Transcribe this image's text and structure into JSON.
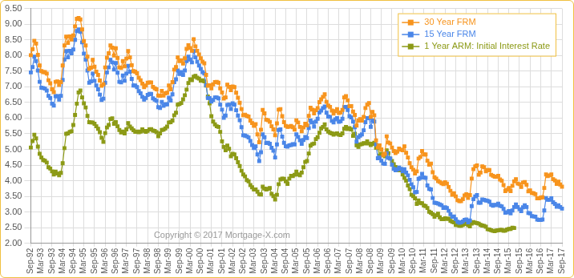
{
  "chart_data": {
    "type": "line",
    "annotation": "Copyright © 2017 Mortgage-X.com",
    "legend": "top-right",
    "grid": true,
    "categories": [
      "Sep-92",
      null,
      null,
      null,
      null,
      null,
      "Mar-93",
      null,
      null,
      null,
      null,
      null,
      "Sep-93",
      null,
      null,
      null,
      null,
      null,
      "Mar-94",
      null,
      null,
      null,
      null,
      null,
      "Sep-94",
      null,
      null,
      null,
      null,
      null,
      "Mar-95",
      null,
      null,
      null,
      null,
      null,
      "Sep-95",
      null,
      null,
      null,
      null,
      null,
      "Mar-96",
      null,
      null,
      null,
      null,
      null,
      "Sep-96",
      null,
      null,
      null,
      null,
      null,
      "Mar-97",
      null,
      null,
      null,
      null,
      null,
      "Sep-97",
      null,
      null,
      null,
      null,
      null,
      "Mar-98",
      null,
      null,
      null,
      null,
      null,
      "Sep-98",
      null,
      null,
      null,
      null,
      null,
      "Mar-99",
      null,
      null,
      null,
      null,
      null,
      "Sep-99",
      null,
      null,
      null,
      null,
      null,
      "Mar-00",
      null,
      null,
      null,
      null,
      null,
      "Sep-00",
      null,
      null,
      null,
      null,
      null,
      "Mar-01",
      null,
      null,
      null,
      null,
      null,
      "Sep-01",
      null,
      null,
      null,
      null,
      null,
      "Mar-02",
      null,
      null,
      null,
      null,
      null,
      "Sep-02",
      null,
      null,
      null,
      null,
      null,
      "Mar-03",
      null,
      null,
      null,
      null,
      null,
      "Sep-03",
      null,
      null,
      null,
      null,
      null,
      "Mar-04",
      null,
      null,
      null,
      null,
      null,
      "Sep-04",
      null,
      null,
      null,
      null,
      null,
      "Mar-05",
      null,
      null,
      null,
      null,
      null,
      "Sep-05",
      null,
      null,
      null,
      null,
      null,
      "Mar-06",
      null,
      null,
      null,
      null,
      null,
      "Sep-06",
      null,
      null,
      null,
      null,
      null,
      "Mar-07",
      null,
      null,
      null,
      null,
      null,
      "Sep-07",
      null,
      null,
      null,
      null,
      null,
      "Mar-08",
      null,
      null,
      null,
      null,
      null,
      "Sep-08",
      null,
      null,
      null,
      null,
      null,
      "Mar-09",
      null,
      null,
      null,
      null,
      null,
      "Sep-09",
      null,
      null,
      null,
      null,
      null,
      "Mar-10",
      null,
      null,
      null,
      null,
      null,
      "Sep-10",
      null,
      null,
      null,
      null,
      null,
      "Mar-11",
      null,
      null,
      null,
      null,
      null,
      "Sep-11",
      null,
      null,
      null,
      null,
      null,
      "Mar-12",
      null,
      null,
      null,
      null,
      null,
      "Sep-12",
      null,
      null,
      null,
      null,
      null,
      "Mar-13",
      null,
      null,
      null,
      null,
      null,
      "Sep-13",
      null,
      null,
      null,
      null,
      null,
      "Mar-14",
      null,
      null,
      null,
      null,
      null,
      "Sep-14",
      null,
      null,
      null,
      null,
      null,
      "Mar-15",
      null,
      null,
      null,
      null,
      null,
      "Sep-15",
      null,
      null,
      null,
      null,
      null,
      "Mar-16",
      null,
      null,
      null,
      null,
      null,
      "Sep-16",
      null,
      null,
      null,
      null,
      null,
      "Mar-17",
      null,
      null,
      null,
      null,
      null,
      "Sep-17"
    ],
    "ylim": [
      2,
      9.5
    ],
    "yticks": [
      {
        "value": 2,
        "label": "2.00"
      },
      {
        "value": 2.5,
        "label": "2.50"
      },
      {
        "value": 3,
        "label": "3.00"
      },
      {
        "value": 3.5,
        "label": "3.50"
      },
      {
        "value": 4,
        "label": "4.00"
      },
      {
        "value": 4.5,
        "label": "4.50"
      },
      {
        "value": 5,
        "label": "5.00"
      },
      {
        "value": 5.5,
        "label": "5.50"
      },
      {
        "value": 6,
        "label": "6.00"
      },
      {
        "value": 6.5,
        "label": "6.50"
      },
      {
        "value": 7,
        "label": "7.00"
      },
      {
        "value": 7.5,
        "label": "7.50"
      },
      {
        "value": 8,
        "label": "8.00"
      },
      {
        "value": 8.5,
        "label": "8.50"
      },
      {
        "value": 9,
        "label": "9.00"
      },
      {
        "value": 9.5,
        "label": "9.50"
      }
    ],
    "series": [
      {
        "name": "30 Year FRM",
        "color": "#f7941d",
        "marker": "square",
        "line_style": "solid",
        "values": [
          8.01,
          8.2,
          8.47,
          8.38,
          8.02,
          7.68,
          7.5,
          7.47,
          7.47,
          7.42,
          7.21,
          7.11,
          6.92,
          6.83,
          7.16,
          7.17,
          7.06,
          7.15,
          7.68,
          8.32,
          8.6,
          8.4,
          8.61,
          8.51,
          8.64,
          8.93,
          9.17,
          9.2,
          9.15,
          8.83,
          8.46,
          8.32,
          7.96,
          7.57,
          7.61,
          7.86,
          7.64,
          7.48,
          7.38,
          7.2,
          7.03,
          7.08,
          7.62,
          7.93,
          8.07,
          8.32,
          8.25,
          8.0,
          8.23,
          7.92,
          7.62,
          7.6,
          7.82,
          7.65,
          7.9,
          8.14,
          7.94,
          7.69,
          7.5,
          7.48,
          7.43,
          7.29,
          7.21,
          7.1,
          6.99,
          7.04,
          7.13,
          7.14,
          7.14,
          7.0,
          6.95,
          6.92,
          6.72,
          6.71,
          6.87,
          6.72,
          6.79,
          6.81,
          7.04,
          6.92,
          7.15,
          7.55,
          7.63,
          7.94,
          7.82,
          7.85,
          7.74,
          7.91,
          8.21,
          8.33,
          8.24,
          8.15,
          8.52,
          8.29,
          8.15,
          8.03,
          7.91,
          7.8,
          7.75,
          7.38,
          7.03,
          7.05,
          6.95,
          7.08,
          7.15,
          7.16,
          7.13,
          6.95,
          6.82,
          6.62,
          6.66,
          7.07,
          7.0,
          6.89,
          7.01,
          6.99,
          6.81,
          6.65,
          6.49,
          6.29,
          6.09,
          6.11,
          6.07,
          6.05,
          5.92,
          5.84,
          5.75,
          5.81,
          5.48,
          5.23,
          5.63,
          6.26,
          6.15,
          5.95,
          5.93,
          5.88,
          5.74,
          5.64,
          5.45,
          5.83,
          6.27,
          6.29,
          6.06,
          5.87,
          5.75,
          5.72,
          5.73,
          5.75,
          5.71,
          5.63,
          5.93,
          5.86,
          5.72,
          5.58,
          5.7,
          5.82,
          5.77,
          6.07,
          6.33,
          6.27,
          6.15,
          6.25,
          6.32,
          6.51,
          6.6,
          6.68,
          6.76,
          6.52,
          6.4,
          6.36,
          6.24,
          6.14,
          6.22,
          6.29,
          6.16,
          6.18,
          6.26,
          6.66,
          6.7,
          6.57,
          6.38,
          6.38,
          6.21,
          6.1,
          5.76,
          5.92,
          5.97,
          5.92,
          6.04,
          6.32,
          6.43,
          6.48,
          6.04,
          6.2,
          6.09,
          5.29,
          5.06,
          5.13,
          5.0,
          4.81,
          4.86,
          5.42,
          5.22,
          5.19,
          5.06,
          4.95,
          4.88,
          4.93,
          5.03,
          4.99,
          4.97,
          5.1,
          4.89,
          4.74,
          4.56,
          4.43,
          4.35,
          4.23,
          4.3,
          4.71,
          4.76,
          4.95,
          4.84,
          4.84,
          4.64,
          4.51,
          4.55,
          4.27,
          4.11,
          4.07,
          3.99,
          3.96,
          3.92,
          3.89,
          3.95,
          3.91,
          3.8,
          3.68,
          3.55,
          3.6,
          3.5,
          3.38,
          3.35,
          3.35,
          3.41,
          3.53,
          3.57,
          3.45,
          3.54,
          4.07,
          4.37,
          4.46,
          4.49,
          4.19,
          4.26,
          4.46,
          4.43,
          4.3,
          4.34,
          4.34,
          4.19,
          4.16,
          4.13,
          4.12,
          4.16,
          4.04,
          4.0,
          3.86,
          3.67,
          3.71,
          3.77,
          3.67,
          3.84,
          3.98,
          4.05,
          3.91,
          3.89,
          3.8,
          3.94,
          3.96,
          3.87,
          3.66,
          3.69,
          3.61,
          3.6,
          3.57,
          3.44,
          3.44,
          3.46,
          3.47,
          3.77,
          4.2,
          4.15,
          4.17,
          4.2,
          4.05,
          4.01,
          3.9,
          3.97,
          3.88,
          3.81
        ]
      },
      {
        "name": "15 Year FRM",
        "color": "#4a86e8",
        "marker": "square",
        "line_style": "solid",
        "values": [
          7.46,
          7.63,
          7.96,
          7.82,
          7.52,
          7.16,
          6.97,
          6.96,
          6.94,
          6.88,
          6.71,
          6.64,
          6.46,
          6.4,
          6.7,
          6.7,
          6.59,
          6.71,
          7.22,
          7.87,
          8.14,
          7.94,
          8.15,
          8.07,
          8.19,
          8.5,
          8.78,
          8.83,
          8.75,
          8.42,
          8.06,
          7.87,
          7.52,
          7.13,
          7.17,
          7.42,
          7.19,
          7.04,
          6.92,
          6.75,
          6.58,
          6.62,
          7.13,
          7.46,
          7.62,
          7.86,
          7.78,
          7.55,
          7.76,
          7.45,
          7.16,
          7.14,
          7.36,
          7.19,
          7.42,
          7.67,
          7.48,
          7.25,
          7.04,
          7.04,
          6.99,
          6.86,
          6.79,
          6.68,
          6.59,
          6.64,
          6.74,
          6.77,
          6.77,
          6.63,
          6.59,
          6.55,
          6.35,
          6.32,
          6.52,
          6.39,
          6.44,
          6.44,
          6.65,
          6.56,
          6.76,
          7.15,
          7.24,
          7.52,
          7.41,
          7.47,
          7.38,
          7.52,
          7.82,
          7.96,
          7.87,
          7.78,
          8.14,
          7.94,
          7.8,
          7.68,
          7.57,
          7.47,
          7.42,
          7.05,
          6.64,
          6.64,
          6.53,
          6.58,
          6.66,
          6.66,
          6.63,
          6.43,
          6.27,
          6.01,
          6.08,
          6.42,
          6.43,
          6.29,
          6.47,
          6.43,
          6.25,
          6.08,
          5.93,
          5.71,
          5.45,
          5.44,
          5.42,
          5.38,
          5.27,
          5.14,
          5.04,
          5.1,
          4.84,
          4.63,
          4.91,
          5.48,
          5.39,
          5.2,
          5.21,
          5.18,
          5.05,
          4.96,
          4.74,
          5.16,
          5.62,
          5.64,
          5.41,
          5.21,
          5.1,
          5.09,
          5.13,
          5.14,
          5.17,
          5.16,
          5.48,
          5.4,
          5.29,
          5.18,
          5.3,
          5.4,
          5.36,
          5.68,
          5.92,
          5.86,
          5.73,
          5.89,
          5.98,
          6.18,
          6.24,
          6.32,
          6.37,
          6.17,
          6.05,
          6.04,
          5.91,
          5.86,
          5.96,
          6.0,
          5.88,
          5.9,
          5.98,
          6.35,
          6.36,
          6.26,
          6.06,
          6.02,
          5.89,
          5.71,
          5.25,
          5.39,
          5.44,
          5.48,
          5.61,
          5.87,
          6.0,
          6.0,
          5.72,
          5.92,
          5.89,
          5.15,
          4.72,
          4.74,
          4.64,
          4.55,
          4.54,
          4.88,
          4.73,
          4.71,
          4.51,
          4.38,
          4.33,
          4.36,
          4.42,
          4.38,
          4.3,
          4.37,
          4.26,
          4.17,
          4.03,
          3.89,
          3.79,
          3.63,
          3.64,
          4.06,
          4.09,
          4.22,
          4.1,
          4.09,
          3.85,
          3.74,
          3.72,
          3.45,
          3.3,
          3.29,
          3.27,
          3.24,
          3.22,
          3.13,
          3.15,
          3.13,
          3.04,
          2.93,
          2.85,
          2.86,
          2.77,
          2.69,
          2.66,
          2.67,
          2.7,
          2.75,
          2.76,
          2.67,
          2.73,
          3.19,
          3.41,
          3.5,
          3.54,
          3.3,
          3.3,
          3.4,
          3.39,
          3.37,
          3.36,
          3.33,
          3.23,
          3.2,
          3.23,
          3.22,
          3.27,
          3.2,
          3.18,
          3.1,
          2.98,
          2.99,
          3.03,
          2.96,
          3.05,
          3.16,
          3.24,
          3.16,
          3.09,
          3.03,
          3.15,
          3.22,
          3.16,
          2.97,
          2.96,
          2.87,
          2.86,
          2.85,
          2.76,
          2.75,
          2.75,
          2.76,
          3.05,
          3.45,
          3.39,
          3.39,
          3.44,
          3.31,
          3.26,
          3.17,
          3.22,
          3.16,
          3.11
        ]
      },
      {
        "name": "1 Year ARM: Initial Interest Rate",
        "color": "#8c9a16",
        "marker": "square",
        "line_style": "solid",
        "values": [
          5.06,
          5.27,
          5.47,
          5.35,
          5.09,
          4.86,
          4.74,
          4.66,
          4.64,
          4.58,
          4.43,
          4.39,
          4.3,
          4.2,
          4.29,
          4.23,
          4.17,
          4.25,
          4.56,
          5.04,
          5.5,
          5.51,
          5.56,
          5.58,
          5.78,
          6.1,
          6.46,
          6.82,
          6.88,
          6.66,
          6.47,
          6.34,
          6.07,
          5.87,
          5.86,
          5.86,
          5.82,
          5.74,
          5.66,
          5.55,
          5.37,
          5.24,
          5.52,
          5.7,
          5.78,
          5.97,
          5.99,
          5.82,
          5.87,
          5.74,
          5.62,
          5.54,
          5.57,
          5.51,
          5.64,
          5.84,
          5.73,
          5.67,
          5.61,
          5.56,
          5.57,
          5.55,
          5.57,
          5.64,
          5.59,
          5.56,
          5.59,
          5.64,
          5.65,
          5.6,
          5.59,
          5.55,
          5.42,
          5.51,
          5.62,
          5.63,
          5.67,
          5.73,
          5.86,
          5.87,
          5.92,
          6.09,
          6.17,
          6.43,
          6.45,
          6.48,
          6.6,
          6.73,
          6.91,
          7.12,
          7.24,
          7.21,
          7.32,
          7.35,
          7.29,
          7.26,
          7.19,
          7.21,
          7.17,
          7.04,
          6.69,
          6.47,
          6.06,
          5.89,
          5.8,
          5.74,
          5.72,
          5.56,
          5.26,
          5.08,
          4.97,
          5.12,
          5.02,
          4.78,
          4.86,
          4.84,
          4.72,
          4.59,
          4.47,
          4.32,
          4.2,
          4.14,
          4.02,
          3.98,
          3.86,
          3.79,
          3.72,
          3.72,
          3.65,
          3.57,
          3.56,
          3.81,
          3.75,
          3.72,
          3.74,
          3.77,
          3.58,
          3.51,
          3.4,
          3.55,
          3.89,
          4.04,
          4.07,
          4.06,
          3.98,
          3.9,
          4.07,
          4.16,
          4.15,
          4.19,
          4.29,
          4.2,
          4.17,
          4.26,
          4.43,
          4.6,
          4.63,
          4.87,
          5.12,
          5.17,
          5.19,
          5.33,
          5.39,
          5.53,
          5.67,
          5.72,
          5.8,
          5.64,
          5.57,
          5.53,
          5.51,
          5.47,
          5.5,
          5.51,
          5.47,
          5.46,
          5.51,
          5.66,
          5.72,
          5.65,
          5.68,
          5.64,
          5.43,
          5.5,
          5.13,
          5.08,
          5.16,
          5.17,
          5.2,
          5.19,
          5.26,
          5.19,
          5.14,
          5.18,
          5.21,
          5.05,
          5.04,
          4.8,
          4.86,
          4.81,
          4.78,
          4.97,
          4.88,
          4.71,
          4.63,
          4.53,
          4.44,
          4.34,
          4.33,
          4.36,
          4.2,
          4.09,
          4.0,
          3.85,
          3.73,
          3.55,
          3.51,
          3.44,
          3.26,
          3.37,
          3.29,
          3.28,
          3.21,
          3.19,
          3.13,
          3.01,
          2.98,
          2.93,
          2.85,
          2.9,
          2.95,
          2.83,
          2.77,
          2.77,
          2.8,
          2.78,
          2.79,
          2.72,
          2.69,
          2.67,
          2.59,
          2.59,
          2.56,
          2.56,
          2.59,
          2.62,
          2.63,
          2.58,
          2.54,
          2.63,
          2.68,
          2.66,
          2.65,
          2.63,
          2.59,
          2.57,
          2.56,
          2.53,
          2.45,
          2.44,
          2.42,
          2.4,
          2.39,
          2.41,
          2.42,
          2.43,
          2.43,
          2.4,
          2.41,
          2.44,
          2.46,
          2.46,
          2.5,
          2.49,
          null,
          null,
          null,
          null,
          null,
          null,
          null,
          null,
          null,
          null,
          null,
          null,
          null,
          null,
          null,
          null,
          null,
          null,
          null,
          null,
          null,
          null,
          null,
          null,
          null,
          null,
          null
        ]
      }
    ]
  }
}
